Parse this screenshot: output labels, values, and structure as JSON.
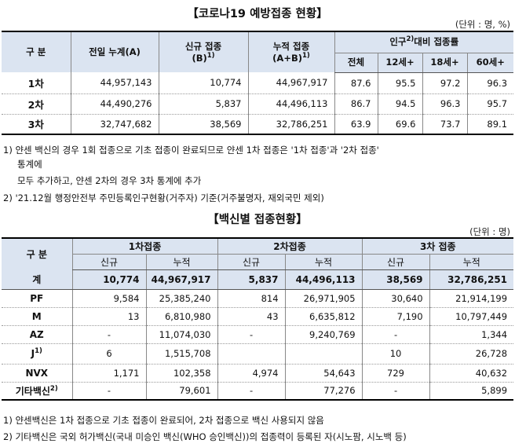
{
  "table1": {
    "title": "【코로나19 예방접종 현황】",
    "unit": "(단위 : 명, %)",
    "headers": {
      "category": "구 분",
      "prev_total": "전일 누계(A)",
      "new_line1": "신규 접종",
      "new_line2": "(B)",
      "new_sup": "1)",
      "cum_line1": "누적 접종",
      "cum_line2": "(A+B)",
      "cum_sup": "1)",
      "rate_pre": "인구",
      "rate_sup": "2)",
      "rate_post": "대비 접종률",
      "sub": [
        "전체",
        "12세+",
        "18세+",
        "60세+"
      ]
    },
    "rows": [
      {
        "label": "1차",
        "prev": "44,957,143",
        "new": "10,774",
        "cum": "44,967,917",
        "all": "87.6",
        "a12": "95.5",
        "a18": "97.2",
        "a60": "96.3"
      },
      {
        "label": "2차",
        "prev": "44,490,276",
        "new": "5,837",
        "cum": "44,496,113",
        "all": "86.7",
        "a12": "94.5",
        "a18": "96.3",
        "a60": "95.7"
      },
      {
        "label": "3차",
        "prev": "32,747,682",
        "new": "38,569",
        "cum": "32,786,251",
        "all": "63.9",
        "a12": "69.6",
        "a18": "73.7",
        "a60": "89.1"
      }
    ],
    "notes": [
      "1) 얀센 백신의 경우 1회 접종으로 기초 접종이 완료되므로 얀센 1차 접종은 '1차 접종'과 '2차 접종'",
      "통계에",
      "모두 추가하고, 얀센 2차의 경우 3차 통계에 추가",
      "2) '21.12월 행정안전부 주민등록인구현황(거주자) 기준(거주불명자, 재외국민 제외)"
    ]
  },
  "table2": {
    "title": "【백신별 접종현황】",
    "unit": "(단위 : 명)",
    "headers": {
      "category": "구 분",
      "dose1": "1차접종",
      "dose2": "2차접종",
      "dose3": "3차 접종",
      "new": "신규",
      "cum": "누적"
    },
    "total": {
      "label": "계",
      "d1_new": "10,774",
      "d1_cum": "44,967,917",
      "d2_new": "5,837",
      "d2_cum": "44,496,113",
      "d3_new": "38,569",
      "d3_cum": "32,786,251"
    },
    "rows": [
      {
        "label": "PF",
        "sup": "",
        "d1_new": "9,584",
        "d1_cum": "25,385,240",
        "d2_new": "814",
        "d2_cum": "26,971,905",
        "d3_new": "30,640",
        "d3_cum": "21,914,199"
      },
      {
        "label": "M",
        "sup": "",
        "d1_new": "13",
        "d1_cum": "6,810,980",
        "d2_new": "43",
        "d2_cum": "6,635,812",
        "d3_new": "7,190",
        "d3_cum": "10,797,449"
      },
      {
        "label": "AZ",
        "sup": "",
        "d1_new": "-",
        "d1_cum": "11,074,030",
        "d2_new": "-",
        "d2_cum": "9,240,769",
        "d3_new": "-",
        "d3_cum": "1,344"
      },
      {
        "label": "J",
        "sup": "1)",
        "d1_new": "6",
        "d1_cum": "1,515,708",
        "d2_new": "",
        "d2_cum": "",
        "d3_new": "10",
        "d3_cum": "26,728"
      },
      {
        "label": "NVX",
        "sup": "",
        "d1_new": "1,171",
        "d1_cum": "102,358",
        "d2_new": "4,974",
        "d2_cum": "54,643",
        "d3_new": "729",
        "d3_cum": "40,632"
      },
      {
        "label": "기타백신",
        "sup": "2)",
        "d1_new": "-",
        "d1_cum": "79,601",
        "d2_new": "-",
        "d2_cum": "77,276",
        "d3_new": "-",
        "d3_cum": "5,899"
      }
    ],
    "notes": [
      "1) 얀센백신은 1차 접종으로 기초 접종이 완료되어, 2차 접종으로 백신 사용되지 않음",
      "2) 기타백신은 국외 허가백신(국내 미승인 백신(WHO 승인백신))의 접종력이 등록된 자(시노팜, 시노백 등)"
    ]
  }
}
